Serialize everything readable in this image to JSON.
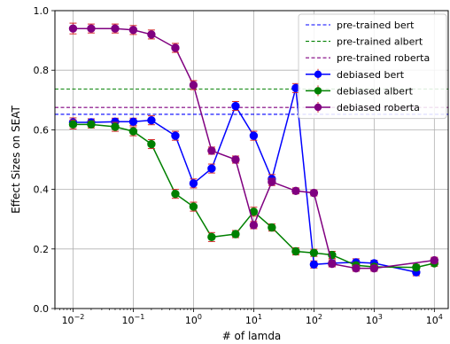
{
  "chart_data": {
    "type": "line",
    "xscale": "log",
    "xlabel": "# of lamda",
    "ylabel": "Effect Sizes on SEAT",
    "ylim": [
      0.0,
      1.0
    ],
    "xlim": [
      0.005,
      17000
    ],
    "yticks": [
      {
        "value": 0.0,
        "label": "0.0"
      },
      {
        "value": 0.2,
        "label": "0.2"
      },
      {
        "value": 0.4,
        "label": "0.4"
      },
      {
        "value": 0.6,
        "label": "0.6"
      },
      {
        "value": 0.8,
        "label": "0.8"
      },
      {
        "value": 1.0,
        "label": "1.0"
      }
    ],
    "xticks": [
      {
        "value": 0.01,
        "base": "10",
        "exp": "−2"
      },
      {
        "value": 0.1,
        "base": "10",
        "exp": "−1"
      },
      {
        "value": 1,
        "base": "10",
        "exp": "0"
      },
      {
        "value": 10,
        "base": "10",
        "exp": "1"
      },
      {
        "value": 100,
        "base": "10",
        "exp": "2"
      },
      {
        "value": 1000,
        "base": "10",
        "exp": "3"
      },
      {
        "value": 10000,
        "base": "10",
        "exp": "4"
      }
    ],
    "grid": true,
    "legend_position": "top-right",
    "error_bar_color": "#d62728",
    "x": [
      0.01,
      0.02,
      0.05,
      0.1,
      0.2,
      0.5,
      1,
      2,
      5,
      10,
      20,
      50,
      100,
      200,
      500,
      1000,
      5000,
      10000
    ],
    "series": [
      {
        "name": "debiased bert",
        "color": "#0000ff",
        "values": [
          0.625,
          0.625,
          0.627,
          0.627,
          0.632,
          0.58,
          0.42,
          0.47,
          0.68,
          0.58,
          0.435,
          0.74,
          0.148,
          0.152,
          0.155,
          0.152,
          0.122,
          null
        ],
        "errors": [
          0.015,
          0.012,
          0.012,
          0.012,
          0.015,
          0.015,
          0.015,
          0.015,
          0.015,
          0.015,
          0.015,
          0.015,
          0.012,
          0.012,
          0.012,
          0.01,
          0.012,
          null
        ]
      },
      {
        "name": "debiased albert",
        "color": "#008000",
        "values": [
          0.618,
          0.618,
          0.61,
          0.595,
          0.552,
          0.385,
          0.342,
          0.24,
          0.25,
          0.325,
          0.272,
          0.192,
          0.187,
          0.18,
          0.145,
          0.14,
          0.138,
          0.152
        ],
        "errors": [
          0.015,
          0.012,
          0.015,
          0.015,
          0.015,
          0.015,
          0.015,
          0.015,
          0.012,
          0.015,
          0.012,
          0.012,
          0.012,
          0.012,
          0.01,
          0.01,
          0.01,
          0.01
        ]
      },
      {
        "name": "debiased roberta",
        "color": "#800080",
        "values": [
          0.94,
          0.94,
          0.94,
          0.935,
          0.92,
          0.875,
          0.75,
          0.53,
          0.5,
          0.28,
          0.425,
          0.395,
          0.388,
          0.15,
          0.135,
          0.135,
          null,
          0.162
        ],
        "errors": [
          0.018,
          0.015,
          0.015,
          0.015,
          0.015,
          0.015,
          0.015,
          0.012,
          0.012,
          0.012,
          0.012,
          0.01,
          0.01,
          0.01,
          0.01,
          0.01,
          null,
          0.01
        ]
      }
    ],
    "reference_lines": [
      {
        "name": "pre-trained bert",
        "color": "#0000ff",
        "value": 0.652
      },
      {
        "name": "pre-trained albert",
        "color": "#008000",
        "value": 0.737
      },
      {
        "name": "pre-trained roberta",
        "color": "#800080",
        "value": 0.675
      }
    ],
    "legend": [
      {
        "label": "pre-trained bert",
        "color": "#0000ff",
        "kind": "dashed"
      },
      {
        "label": "pre-trained albert",
        "color": "#008000",
        "kind": "dashed"
      },
      {
        "label": "pre-trained roberta",
        "color": "#800080",
        "kind": "dashed"
      },
      {
        "label": "debiased bert",
        "color": "#0000ff",
        "kind": "marker"
      },
      {
        "label": "debiased albert",
        "color": "#008000",
        "kind": "marker"
      },
      {
        "label": "debiased roberta",
        "color": "#800080",
        "kind": "marker"
      }
    ]
  }
}
